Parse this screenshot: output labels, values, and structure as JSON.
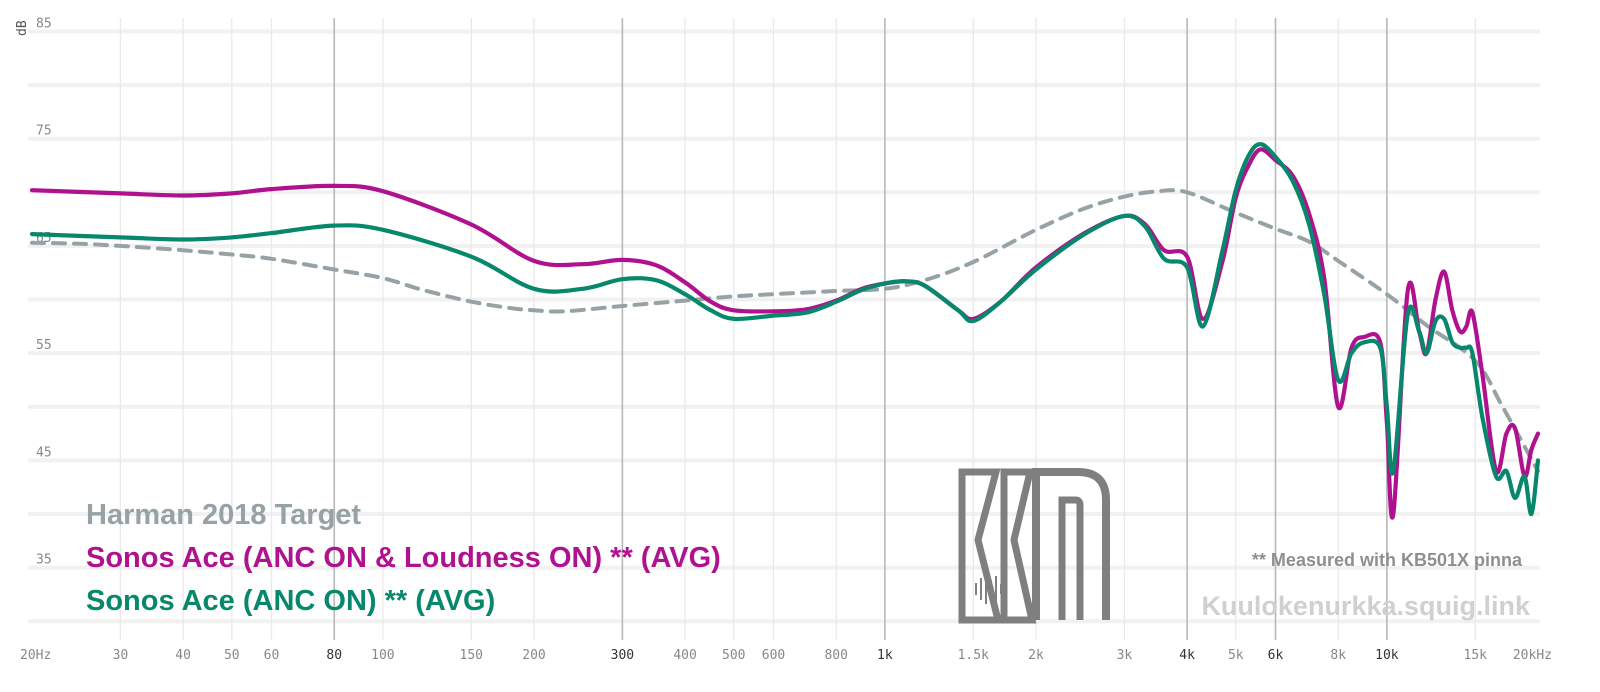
{
  "chart_data": {
    "type": "line",
    "ylabel": "dB",
    "xlabel": "",
    "x_scale": "log",
    "xlim": [
      20,
      20000
    ],
    "ylim": [
      29,
      87
    ],
    "grid": true,
    "legend_placement": "bottom-left",
    "y_ticks": [
      {
        "value": 85,
        "label": "85"
      },
      {
        "value": 75,
        "label": "75"
      },
      {
        "value": 65,
        "label": "65"
      },
      {
        "value": 55,
        "label": "55"
      },
      {
        "value": 45,
        "label": "45"
      },
      {
        "value": 35,
        "label": "35"
      }
    ],
    "x_ticks": [
      {
        "value": 20,
        "label": "20Hz",
        "major": false
      },
      {
        "value": 30,
        "label": "30",
        "major": false
      },
      {
        "value": 40,
        "label": "40",
        "major": false
      },
      {
        "value": 50,
        "label": "50",
        "major": false
      },
      {
        "value": 60,
        "label": "60",
        "major": false
      },
      {
        "value": 80,
        "label": "80",
        "major": true
      },
      {
        "value": 100,
        "label": "100",
        "major": false
      },
      {
        "value": 150,
        "label": "150",
        "major": false
      },
      {
        "value": 200,
        "label": "200",
        "major": false
      },
      {
        "value": 300,
        "label": "300",
        "major": true
      },
      {
        "value": 400,
        "label": "400",
        "major": false
      },
      {
        "value": 500,
        "label": "500",
        "major": false
      },
      {
        "value": 600,
        "label": "600",
        "major": false
      },
      {
        "value": 800,
        "label": "800",
        "major": false
      },
      {
        "value": 1000,
        "label": "1k",
        "major": true
      },
      {
        "value": 1500,
        "label": "1.5k",
        "major": false
      },
      {
        "value": 2000,
        "label": "2k",
        "major": false
      },
      {
        "value": 3000,
        "label": "3k",
        "major": false
      },
      {
        "value": 4000,
        "label": "4k",
        "major": true
      },
      {
        "value": 5000,
        "label": "5k",
        "major": false
      },
      {
        "value": 6000,
        "label": "6k",
        "major": true
      },
      {
        "value": 8000,
        "label": "8k",
        "major": false
      },
      {
        "value": 10000,
        "label": "10k",
        "major": true
      },
      {
        "value": 15000,
        "label": "15k",
        "major": false
      },
      {
        "value": 20000,
        "label": "20kHz",
        "major": false
      }
    ],
    "series": [
      {
        "name": "Harman 2018 Target",
        "color": "#97a2a6",
        "dashed": true,
        "x": [
          20,
          25,
          30,
          40,
          50,
          60,
          80,
          100,
          120,
          150,
          180,
          200,
          230,
          300,
          400,
          500,
          600,
          800,
          1000,
          1200,
          1500,
          2000,
          2500,
          3000,
          3500,
          4000,
          5000,
          6000,
          7000,
          8000,
          10000,
          12000,
          15000,
          17000,
          20000
        ],
        "y": [
          65.3,
          65.2,
          65.0,
          64.6,
          64.2,
          63.8,
          62.8,
          62.0,
          60.9,
          59.8,
          59.2,
          59.0,
          58.9,
          59.4,
          59.9,
          60.3,
          60.5,
          60.8,
          61.0,
          61.8,
          63.5,
          66.5,
          68.5,
          69.6,
          70.1,
          70.0,
          68.1,
          66.6,
          65.4,
          63.6,
          60.5,
          57.6,
          54.3,
          50.0,
          44.0
        ]
      },
      {
        "name": "Sonos Ace (ANC ON & Loudness ON) ** (AVG)",
        "color": "#b0118f",
        "dashed": false,
        "x": [
          20,
          30,
          40,
          50,
          60,
          80,
          100,
          150,
          200,
          250,
          300,
          350,
          400,
          450,
          500,
          600,
          700,
          800,
          900,
          1000,
          1100,
          1200,
          1400,
          1500,
          1700,
          2000,
          2500,
          3000,
          3300,
          3600,
          4000,
          4300,
          4700,
          5000,
          5300,
          5600,
          6000,
          6500,
          7000,
          7500,
          8000,
          8500,
          9000,
          9700,
          10000,
          10300,
          11000,
          11600,
          12000,
          12500,
          13000,
          13500,
          14000,
          14400,
          14800,
          15500,
          16500,
          17300,
          18000,
          18800,
          19400,
          20000
        ],
        "y": [
          70.2,
          69.9,
          69.7,
          69.9,
          70.3,
          70.6,
          70.1,
          67.0,
          63.6,
          63.3,
          63.7,
          63.2,
          61.6,
          59.8,
          59.0,
          58.9,
          59.1,
          59.9,
          61.0,
          61.5,
          61.7,
          61.3,
          59.0,
          58.2,
          59.8,
          63.0,
          66.2,
          67.8,
          67.0,
          64.6,
          64.0,
          58.2,
          63.5,
          69.5,
          72.5,
          74.0,
          73.0,
          71.5,
          68.0,
          62.0,
          50.0,
          55.5,
          56.5,
          56.0,
          48.5,
          40.0,
          60.8,
          57.0,
          55.0,
          60.0,
          62.6,
          59.0,
          57.0,
          57.5,
          58.8,
          53.0,
          44.0,
          47.5,
          48.0,
          43.5,
          46.0,
          47.5
        ]
      },
      {
        "name": "Sonos Ace (ANC ON) ** (AVG)",
        "color": "#07886c",
        "dashed": false,
        "x": [
          20,
          30,
          40,
          50,
          60,
          80,
          100,
          150,
          200,
          250,
          300,
          350,
          400,
          450,
          500,
          600,
          700,
          800,
          900,
          1000,
          1100,
          1200,
          1400,
          1500,
          1700,
          2000,
          2500,
          3000,
          3300,
          3600,
          4000,
          4300,
          4700,
          5000,
          5300,
          5600,
          6000,
          6500,
          7000,
          7500,
          8000,
          8500,
          9000,
          9700,
          10000,
          10300,
          11000,
          11600,
          12000,
          12500,
          13000,
          13500,
          14000,
          14400,
          14800,
          15500,
          16500,
          17300,
          18000,
          18800,
          19400,
          20000
        ],
        "y": [
          66.1,
          65.8,
          65.6,
          65.8,
          66.2,
          66.9,
          66.5,
          64.0,
          61.0,
          61.0,
          61.9,
          61.8,
          60.5,
          59.0,
          58.2,
          58.5,
          58.8,
          59.8,
          60.9,
          61.5,
          61.7,
          61.3,
          59.0,
          58.0,
          59.8,
          62.8,
          66.1,
          67.8,
          66.8,
          63.8,
          63.0,
          57.5,
          64.5,
          70.2,
          73.4,
          74.5,
          73.3,
          71.0,
          67.0,
          60.5,
          52.5,
          55.0,
          56.0,
          55.5,
          50.0,
          44.0,
          58.6,
          57.0,
          55.0,
          58.0,
          58.2,
          56.0,
          55.5,
          55.5,
          55.0,
          49.0,
          43.5,
          44.0,
          41.5,
          43.5,
          40.0,
          45.0
        ]
      }
    ],
    "legend": [
      "Harman 2018 Target",
      "Sonos Ace (ANC ON & Loudness ON) ** (AVG)",
      "Sonos Ace (ANC ON) ** (AVG)"
    ],
    "annotation": "** Measured with KB501X pinna",
    "watermark_url": "Kuulokenurkka.squig.link",
    "logo_text": "KN"
  },
  "colors": {
    "grid_minor": "#e9e9e9",
    "grid_major": "#b8b8b8",
    "grid_horizontal": "#f1f1f1",
    "tick_text": "#888888",
    "tick_text_major": "#333333",
    "note": "#8f8f8f",
    "watermark": "#d0d0d0",
    "logo": "#7f7f7f"
  }
}
